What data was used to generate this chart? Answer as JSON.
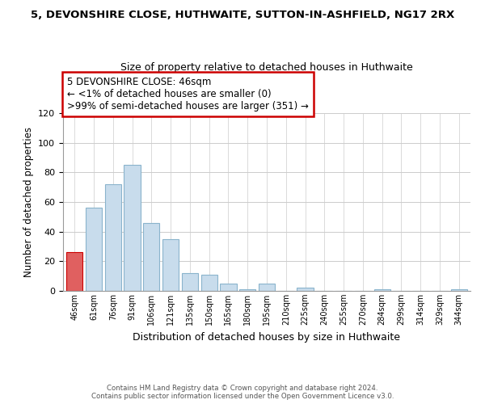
{
  "title": "5, DEVONSHIRE CLOSE, HUTHWAITE, SUTTON-IN-ASHFIELD, NG17 2RX",
  "subtitle": "Size of property relative to detached houses in Huthwaite",
  "xlabel": "Distribution of detached houses by size in Huthwaite",
  "ylabel": "Number of detached properties",
  "bar_labels": [
    "46sqm",
    "61sqm",
    "76sqm",
    "91sqm",
    "106sqm",
    "121sqm",
    "135sqm",
    "150sqm",
    "165sqm",
    "180sqm",
    "195sqm",
    "210sqm",
    "225sqm",
    "240sqm",
    "255sqm",
    "270sqm",
    "284sqm",
    "299sqm",
    "314sqm",
    "329sqm",
    "344sqm"
  ],
  "bar_values": [
    26,
    56,
    72,
    85,
    46,
    35,
    12,
    11,
    5,
    1,
    5,
    0,
    2,
    0,
    0,
    0,
    1,
    0,
    0,
    0,
    1
  ],
  "bar_color": "#c8dcec",
  "highlight_bar_index": 0,
  "highlight_bar_color": "#e06060",
  "highlight_edge_color": "#cc0000",
  "normal_edge_color": "#8ab4cc",
  "ylim": [
    0,
    120
  ],
  "yticks": [
    0,
    20,
    40,
    60,
    80,
    100,
    120
  ],
  "annotation_line1": "5 DEVONSHIRE CLOSE: 46sqm",
  "annotation_line2": "← <1% of detached houses are smaller (0)",
  "annotation_line3": ">99% of semi-detached houses are larger (351) →",
  "footnote1": "Contains HM Land Registry data © Crown copyright and database right 2024.",
  "footnote2": "Contains public sector information licensed under the Open Government Licence v3.0.",
  "background_color": "#ffffff",
  "grid_color": "#cccccc"
}
